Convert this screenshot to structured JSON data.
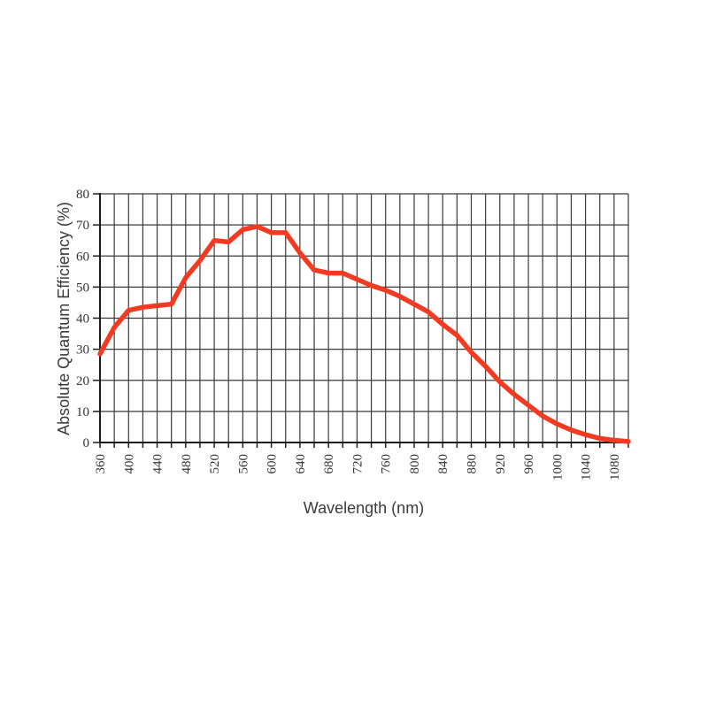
{
  "chart_data": {
    "type": "line",
    "title": "",
    "xlabel": "Wavelength (nm)",
    "ylabel": "Absolute Quantum Efficiency (%)",
    "xlim": [
      360,
      1100
    ],
    "ylim": [
      0,
      80
    ],
    "grid": true,
    "legend": "none",
    "x_grid_step": 20,
    "y_grid_step": 10,
    "x_tick_labels": [
      "360",
      "400",
      "440",
      "480",
      "520",
      "560",
      "600",
      "640",
      "680",
      "720",
      "760",
      "800",
      "840",
      "880",
      "920",
      "960",
      "1000",
      "1040",
      "1080"
    ],
    "y_tick_labels": [
      "0",
      "10",
      "20",
      "30",
      "40",
      "50",
      "60",
      "70",
      "80"
    ],
    "x": [
      360,
      380,
      400,
      420,
      440,
      460,
      480,
      500,
      520,
      540,
      560,
      580,
      600,
      620,
      640,
      660,
      680,
      700,
      720,
      740,
      760,
      780,
      800,
      820,
      840,
      860,
      880,
      900,
      920,
      940,
      960,
      980,
      1000,
      1020,
      1040,
      1060,
      1080,
      1100
    ],
    "series": [
      {
        "name": "Absolute Quantum Efficiency",
        "values": [
          28.5,
          37,
          42.5,
          43.5,
          44,
          44.5,
          53,
          58.5,
          65,
          64.5,
          68.5,
          69.5,
          67.5,
          67.5,
          61,
          55.5,
          54.5,
          54.5,
          52.5,
          50.5,
          49,
          47,
          44.5,
          42,
          38,
          34.5,
          29,
          24.5,
          19.5,
          15.5,
          12,
          8.5,
          6,
          4,
          2.5,
          1.3,
          0.7,
          0.3
        ]
      }
    ]
  },
  "style": {
    "line_color": "#f43a20",
    "grid_color": "#3a3a3a",
    "axis_color": "#1c1c1c",
    "text_color": "#333333",
    "background": "#ffffff"
  }
}
